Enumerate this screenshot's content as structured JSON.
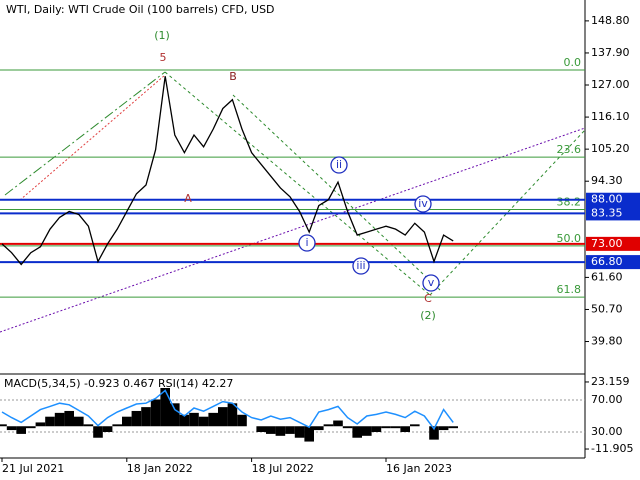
{
  "chart_data": [
    {
      "type": "line",
      "title": "WTI, Daily:  WTI Crude Oil (100 barrels) CFD, USD",
      "categories": [
        "21 Jul 2021",
        null,
        null,
        null,
        null,
        null,
        null,
        null,
        null,
        null,
        null,
        null,
        null,
        "18 Jan 2022",
        null,
        null,
        null,
        null,
        null,
        null,
        null,
        null,
        null,
        null,
        null,
        null,
        "18 Jul 2022",
        null,
        null,
        null,
        null,
        null,
        null,
        null,
        null,
        null,
        null,
        null,
        null,
        null,
        "16 Jan 2023",
        null,
        null,
        null,
        null,
        null,
        null,
        null
      ],
      "series": [
        {
          "name": "WTI",
          "color": "#000000",
          "values": [
            73,
            70,
            66,
            70,
            72,
            78,
            82,
            84,
            83,
            79,
            67,
            73,
            78,
            84,
            90,
            93,
            105,
            130,
            110,
            104,
            110,
            106,
            112,
            119,
            122,
            112,
            104,
            100,
            96,
            92,
            89,
            84,
            77,
            86,
            88,
            94,
            84,
            76,
            77,
            78,
            79,
            78,
            76,
            80,
            77,
            67,
            76,
            74
          ]
        }
      ],
      "ylim": [
        29.1,
        155.9
      ],
      "yticks": [
        {
          "value": 148.8,
          "label": "148.80"
        },
        {
          "value": 137.9,
          "label": "137.90"
        },
        {
          "value": 127,
          "label": "127.00"
        },
        {
          "value": 116.1,
          "label": "116.10"
        },
        {
          "value": 105.2,
          "label": "105.20"
        },
        {
          "value": 94.3,
          "label": "94.30"
        },
        {
          "value": 61.6,
          "label": "61.60"
        },
        {
          "value": 50.7,
          "label": "50.70"
        },
        {
          "value": 39.8,
          "label": "39.80"
        }
      ],
      "levels": [
        {
          "value": 88,
          "label": "88.00",
          "color": "#0a2ccc"
        },
        {
          "value": 83.35,
          "label": "83.35",
          "color": "#0a2ccc"
        },
        {
          "value": 73,
          "label": "73.00",
          "color": "#e00000"
        },
        {
          "value": 66.8,
          "label": "66.80",
          "color": "#0a2ccc"
        }
      ],
      "fibonacci": [
        {
          "value": 132.1,
          "label": "0.0"
        },
        {
          "value": 102.5,
          "label": "23.6"
        },
        {
          "value": 84.7,
          "label": "38.2"
        },
        {
          "value": 72.3,
          "label": "50.0"
        },
        {
          "value": 54.9,
          "label": "61.8"
        }
      ],
      "annotations": [
        "(1)",
        "5",
        "B",
        "A",
        "ii",
        "iv",
        "i",
        "iii",
        "v",
        "C",
        "(2)"
      ]
    },
    {
      "type": "macd",
      "title": "MACD(5,34,5) -0.923 0.467 RSI(14) 42.27",
      "series": [
        {
          "name": "MACD",
          "color": "#000000",
          "values": [
            1,
            -2,
            -4,
            -1,
            2,
            5,
            7,
            8,
            5,
            1,
            -6,
            -3,
            1,
            5,
            8,
            10,
            14,
            20,
            12,
            6,
            7,
            5,
            7,
            10,
            12,
            6,
            0,
            -3,
            -4,
            -5,
            -4,
            -6,
            -8,
            -2,
            1,
            3,
            -1,
            -6,
            -5,
            -3,
            -1,
            -1,
            -3,
            1,
            0,
            -7,
            -2,
            -1
          ]
        },
        {
          "name": "RSI",
          "color": "#1e90ff",
          "axis": "y2",
          "values": [
            55,
            48,
            42,
            50,
            58,
            62,
            66,
            64,
            57,
            50,
            38,
            48,
            55,
            60,
            65,
            66,
            72,
            82,
            58,
            50,
            60,
            56,
            62,
            68,
            66,
            55,
            48,
            45,
            50,
            46,
            48,
            42,
            36,
            55,
            58,
            62,
            48,
            40,
            50,
            52,
            55,
            52,
            48,
            56,
            50,
            34,
            58,
            42
          ]
        }
      ],
      "ylim": [
        -16.6,
        26.8
      ],
      "yticks": [
        {
          "value": 23.159,
          "label": "23.159"
        },
        {
          "value": -11.905,
          "label": "-11.905"
        }
      ],
      "y2lim": [
        -2.5,
        101.25
      ],
      "y2ticks": [
        {
          "value": 70,
          "label": "70.00"
        },
        {
          "value": 30,
          "label": "30.00"
        }
      ]
    }
  ]
}
